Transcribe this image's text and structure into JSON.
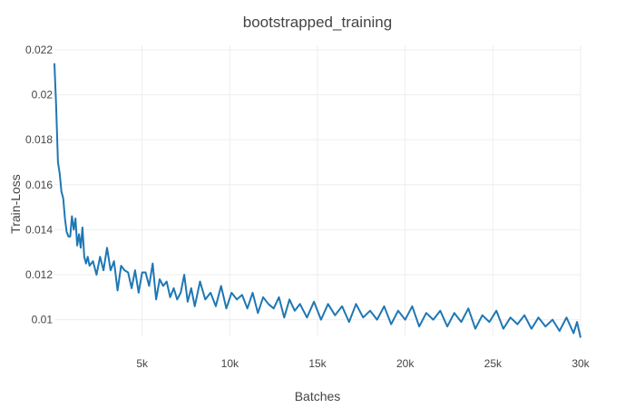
{
  "chart_data": {
    "type": "line",
    "title": "bootstrapped_training",
    "xlabel": "Batches",
    "ylabel": "Train-Loss",
    "xlim": [
      0,
      30000
    ],
    "ylim": [
      0.0093,
      0.0222
    ],
    "x_ticks": [
      5000,
      10000,
      15000,
      20000,
      25000,
      30000
    ],
    "x_tick_labels": [
      "5k",
      "10k",
      "15k",
      "20k",
      "25k",
      "30k"
    ],
    "y_ticks": [
      0.01,
      0.012,
      0.014,
      0.016,
      0.018,
      0.02,
      0.022
    ],
    "y_tick_labels": [
      "0.01",
      "0.012",
      "0.014",
      "0.016",
      "0.018",
      "0.02",
      "0.022"
    ],
    "grid": true,
    "line_color": "#1f77b4",
    "series": [
      {
        "x": [
          0,
          100,
          200,
          300,
          400,
          500,
          600,
          700,
          800,
          900,
          1000,
          1100,
          1200,
          1300,
          1400,
          1500,
          1600,
          1700,
          1800,
          1900,
          2000,
          2200,
          2400,
          2600,
          2800,
          3000,
          3200,
          3400,
          3600,
          3800,
          4000,
          4200,
          4400,
          4600,
          4800,
          5000,
          5200,
          5400,
          5600,
          5800,
          6000,
          6200,
          6400,
          6600,
          6800,
          7000,
          7200,
          7400,
          7600,
          7800,
          8000,
          8300,
          8600,
          8900,
          9200,
          9500,
          9800,
          10100,
          10400,
          10700,
          11000,
          11300,
          11600,
          11900,
          12200,
          12500,
          12800,
          13100,
          13400,
          13700,
          14000,
          14400,
          14800,
          15200,
          15600,
          16000,
          16400,
          16800,
          17200,
          17600,
          18000,
          18400,
          18800,
          19200,
          19600,
          20000,
          20400,
          20800,
          21200,
          21600,
          22000,
          22400,
          22800,
          23200,
          23600,
          24000,
          24400,
          24800,
          25200,
          25600,
          26000,
          26400,
          26800,
          27200,
          27600,
          28000,
          28400,
          28800,
          29200,
          29600,
          29800,
          30000
        ],
        "y": [
          0.0214,
          0.0195,
          0.017,
          0.0165,
          0.0157,
          0.0154,
          0.0145,
          0.0139,
          0.0137,
          0.0137,
          0.0146,
          0.014,
          0.0145,
          0.0133,
          0.0138,
          0.0132,
          0.0141,
          0.0128,
          0.0125,
          0.0128,
          0.0124,
          0.0126,
          0.012,
          0.0128,
          0.0122,
          0.0132,
          0.0122,
          0.0126,
          0.0113,
          0.0124,
          0.0122,
          0.0121,
          0.0114,
          0.0122,
          0.0112,
          0.0121,
          0.0121,
          0.0115,
          0.0125,
          0.0109,
          0.0118,
          0.0115,
          0.0117,
          0.011,
          0.0114,
          0.0109,
          0.0112,
          0.012,
          0.0108,
          0.0114,
          0.0106,
          0.0117,
          0.0109,
          0.0112,
          0.0106,
          0.0115,
          0.0105,
          0.0112,
          0.0109,
          0.0111,
          0.0105,
          0.0112,
          0.0103,
          0.011,
          0.0107,
          0.0105,
          0.011,
          0.0101,
          0.0109,
          0.0104,
          0.0107,
          0.0101,
          0.0108,
          0.01,
          0.0107,
          0.0102,
          0.0106,
          0.0099,
          0.0107,
          0.0101,
          0.0104,
          0.01,
          0.0106,
          0.0098,
          0.0104,
          0.01,
          0.0106,
          0.0097,
          0.0103,
          0.01,
          0.0104,
          0.0097,
          0.0103,
          0.0099,
          0.0105,
          0.0096,
          0.0102,
          0.0099,
          0.0104,
          0.0096,
          0.0101,
          0.0098,
          0.0102,
          0.0096,
          0.0101,
          0.0097,
          0.01,
          0.0095,
          0.0101,
          0.0094,
          0.0099,
          0.0092
        ]
      }
    ]
  }
}
